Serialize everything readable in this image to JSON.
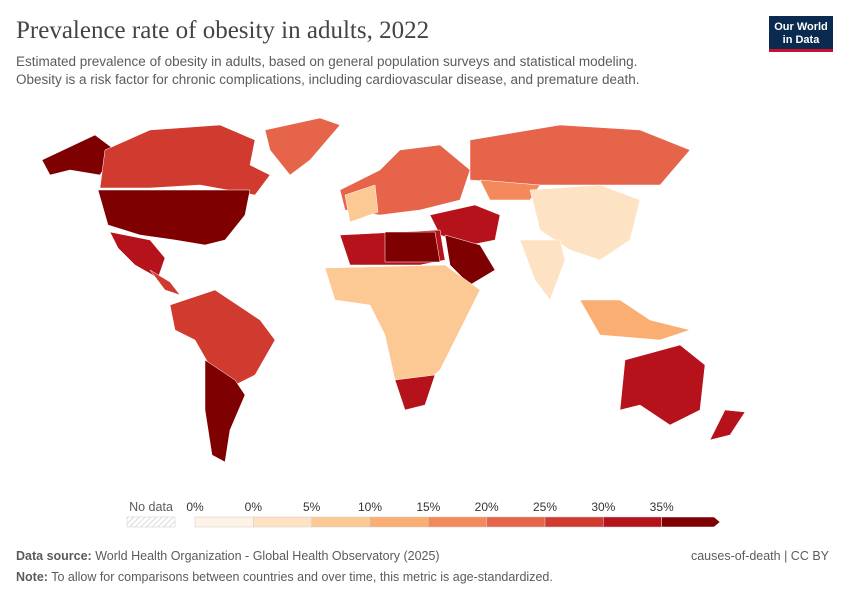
{
  "header": {
    "title": "Prevalence rate of obesity in adults, 2022",
    "subtitle": [
      "Estimated prevalence of obesity in adults, based on general population surveys and statistical modeling.",
      "Obesity is a risk factor for chronic complications, including cardiovascular disease, and premature death."
    ],
    "logo": [
      "Our World",
      "in Data"
    ]
  },
  "legend": {
    "no_data": "No data",
    "labels": [
      "0%",
      "0%",
      "5%",
      "10%",
      "15%",
      "20%",
      "25%",
      "30%",
      "35%"
    ],
    "colors": [
      "#fef3e4",
      "#fde3c3",
      "#fcc893",
      "#faae72",
      "#f48a5b",
      "#e5644a",
      "#d13a2f",
      "#b5121b",
      "#7f0000"
    ]
  },
  "footer": {
    "source_label": "Data source:",
    "source": "World Health Organization - Global Health Observatory (2025)",
    "license": "causes-of-death | CC BY",
    "note_label": "Note:",
    "note": "To allow for comparisons between countries and over time, this metric is age-standardized."
  }
}
